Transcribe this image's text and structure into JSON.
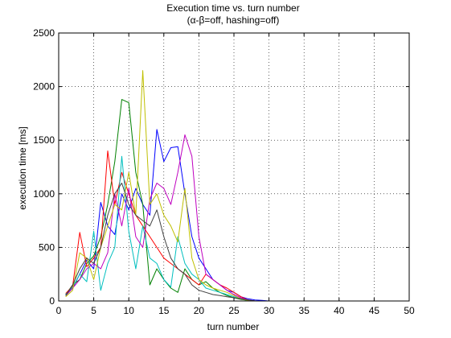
{
  "chart_data": {
    "type": "line",
    "title": "Execution time vs. turn number",
    "subtitle": "(α-β=off, hashing=off)",
    "xlabel": "turn number",
    "ylabel": "execution time [ms]",
    "xlim": [
      0,
      50
    ],
    "ylim": [
      0,
      2500
    ],
    "xticks": [
      "0",
      "5",
      "10",
      "15",
      "20",
      "25",
      "30",
      "35",
      "40",
      "45",
      "50"
    ],
    "yticks": [
      "0",
      "500",
      "1000",
      "1500",
      "2000",
      "2500"
    ],
    "grid": true,
    "legend": "none",
    "series": [
      {
        "color": "#0000ff",
        "x": [
          1,
          2,
          3,
          4,
          5,
          6,
          7,
          8,
          9,
          10,
          11,
          12,
          13,
          14,
          15,
          16,
          17,
          18,
          19,
          20,
          21,
          22,
          23,
          24,
          25,
          26,
          27,
          28,
          29,
          30,
          31,
          32,
          33,
          34,
          35,
          36,
          37,
          38,
          39,
          40,
          41,
          42,
          43,
          44,
          45,
          46,
          47,
          48,
          49,
          50
        ],
        "y": [
          50,
          120,
          250,
          380,
          300,
          920,
          700,
          620,
          1000,
          850,
          1050,
          900,
          800,
          1600,
          1300,
          1430,
          1440,
          1000,
          600,
          400,
          300,
          200,
          150,
          100,
          80,
          40,
          20,
          10,
          5,
          0,
          0,
          0,
          0,
          0,
          0,
          0,
          0,
          0,
          0,
          0,
          0,
          0,
          0,
          0,
          0,
          0,
          0,
          0,
          0,
          0
        ]
      },
      {
        "color": "#008000",
        "x": [
          1,
          2,
          3,
          4,
          5,
          6,
          7,
          8,
          9,
          10,
          11,
          12,
          13,
          14,
          15,
          16,
          17,
          18,
          19,
          20,
          21,
          22,
          23,
          24,
          25,
          26,
          27,
          28,
          29,
          30
        ],
        "y": [
          60,
          150,
          200,
          350,
          420,
          600,
          900,
          1300,
          1880,
          1850,
          1200,
          900,
          150,
          300,
          200,
          120,
          80,
          300,
          200,
          150,
          180,
          120,
          80,
          50,
          30,
          15,
          5,
          0,
          0,
          0
        ]
      },
      {
        "color": "#ff0000",
        "x": [
          1,
          2,
          3,
          4,
          5,
          6,
          7,
          8,
          9,
          10,
          11,
          12,
          13,
          14,
          15,
          16,
          17,
          18,
          19,
          20,
          21,
          22,
          23,
          24,
          25,
          26,
          27,
          28,
          29,
          30
        ],
        "y": [
          70,
          140,
          640,
          320,
          400,
          500,
          1400,
          900,
          1200,
          1000,
          800,
          700,
          600,
          500,
          400,
          350,
          300,
          250,
          200,
          150,
          250,
          200,
          150,
          120,
          80,
          40,
          10,
          0,
          0,
          0
        ]
      },
      {
        "color": "#00bfbf",
        "x": [
          1,
          2,
          3,
          4,
          5,
          6,
          7,
          8,
          9,
          10,
          11,
          12,
          13,
          14,
          15,
          16,
          17,
          18,
          19,
          20,
          21,
          22,
          23,
          24,
          25,
          26,
          27,
          28,
          29,
          30
        ],
        "y": [
          60,
          130,
          250,
          180,
          650,
          100,
          350,
          500,
          1350,
          650,
          300,
          700,
          400,
          350,
          200,
          130,
          600,
          350,
          250,
          200,
          120,
          100,
          80,
          60,
          40,
          20,
          5,
          0,
          0,
          0
        ]
      },
      {
        "color": "#bf00bf",
        "x": [
          1,
          2,
          3,
          4,
          5,
          6,
          7,
          8,
          9,
          10,
          11,
          12,
          13,
          14,
          15,
          16,
          17,
          18,
          19,
          20,
          21,
          22,
          23,
          24,
          25,
          26,
          27,
          28,
          29,
          30
        ],
        "y": [
          50,
          120,
          200,
          300,
          350,
          300,
          450,
          1000,
          700,
          1050,
          600,
          500,
          950,
          1100,
          1050,
          900,
          1200,
          1550,
          1350,
          600,
          250,
          200,
          150,
          100,
          60,
          30,
          10,
          0,
          0,
          0
        ]
      },
      {
        "color": "#bfbf00",
        "x": [
          1,
          2,
          3,
          4,
          5,
          6,
          7,
          8,
          9,
          10,
          11,
          12,
          13,
          14,
          15,
          16,
          17,
          18,
          19,
          20,
          21,
          22,
          23,
          24,
          25,
          26,
          27,
          28,
          29,
          30
        ],
        "y": [
          40,
          100,
          450,
          400,
          200,
          500,
          700,
          900,
          850,
          1200,
          800,
          2150,
          900,
          1000,
          800,
          700,
          550,
          1050,
          400,
          200,
          150,
          120,
          100,
          80,
          50,
          20,
          5,
          0,
          0,
          0
        ]
      },
      {
        "color": "#404040",
        "x": [
          1,
          2,
          3,
          4,
          5,
          6,
          7,
          8,
          9,
          10,
          11,
          12,
          13,
          14,
          15,
          16,
          17,
          18,
          19,
          20,
          21,
          22,
          23,
          24,
          25,
          26,
          27,
          28,
          29,
          30
        ],
        "y": [
          50,
          150,
          300,
          400,
          350,
          500,
          800,
          1000,
          1100,
          900,
          800,
          750,
          700,
          850,
          600,
          400,
          300,
          250,
          150,
          100,
          80,
          60,
          50,
          40,
          30,
          20,
          10,
          0,
          0,
          0
        ]
      },
      {
        "color": "#ff0000",
        "x": [
          30,
          31,
          32,
          33,
          34,
          35,
          36,
          37,
          38,
          39,
          40,
          41,
          42,
          43,
          44,
          45,
          46,
          47,
          48,
          49,
          50
        ],
        "y": [
          0,
          0,
          0,
          0,
          0,
          0,
          0,
          0,
          0,
          0,
          0,
          0,
          0,
          0,
          0,
          0,
          0,
          0,
          0,
          0,
          0
        ]
      }
    ]
  }
}
